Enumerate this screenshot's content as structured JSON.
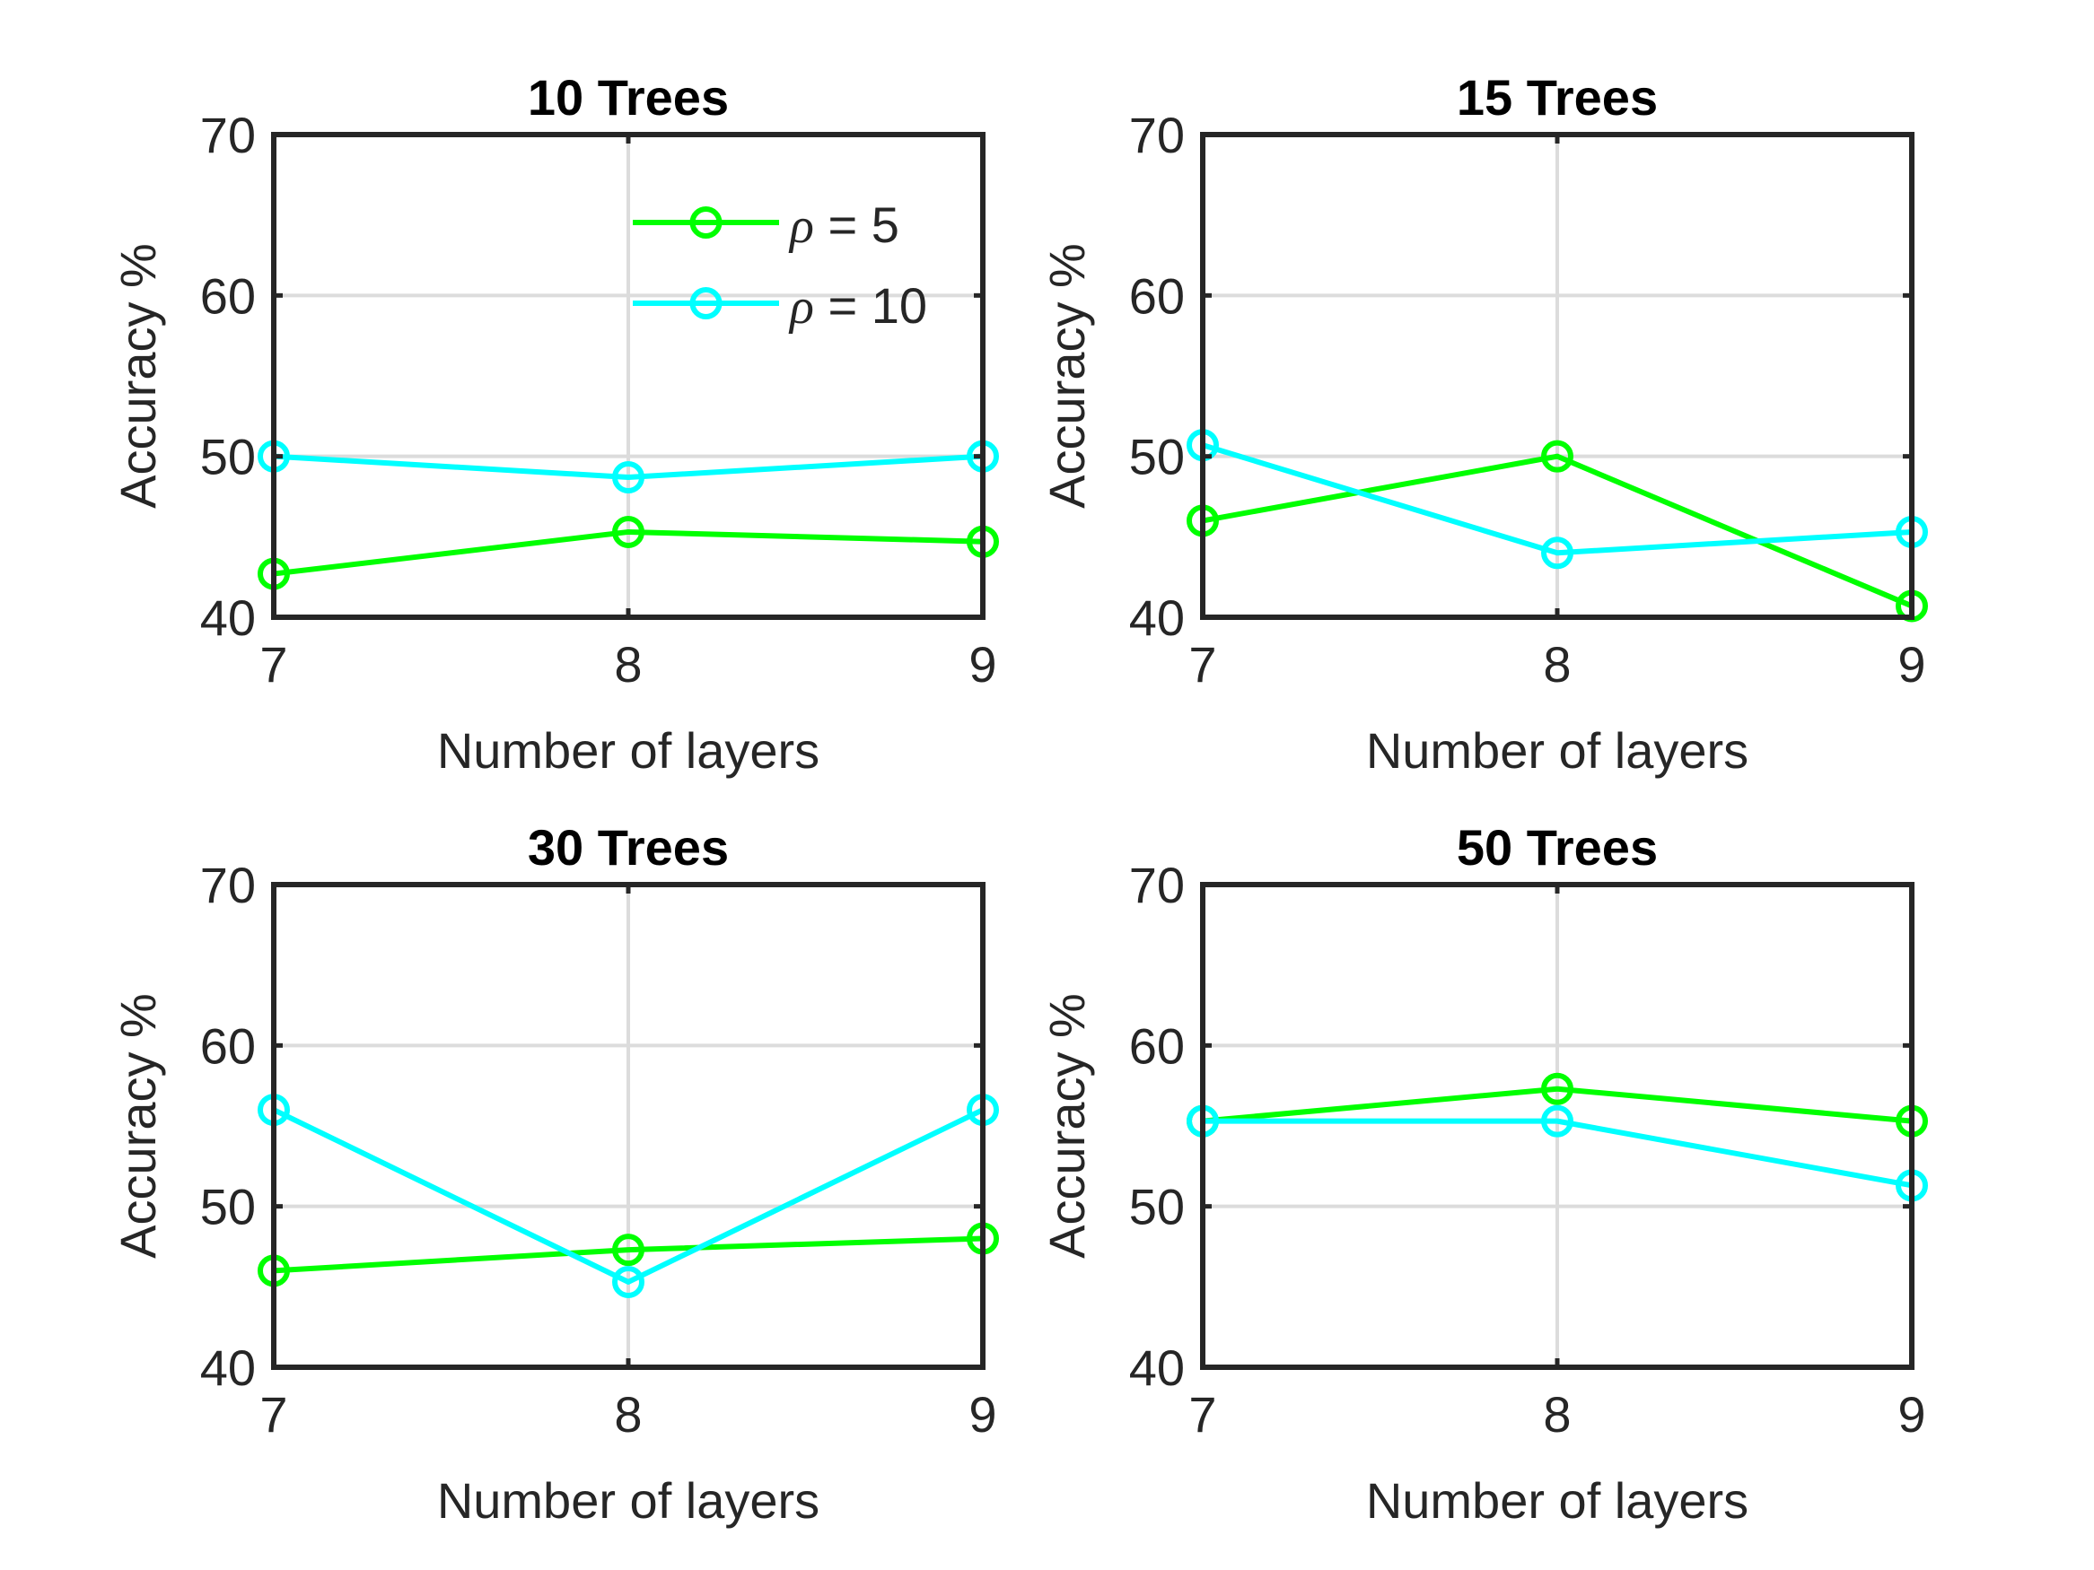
{
  "chart_data": [
    {
      "type": "line",
      "title": "10 Trees",
      "xlabel": "Number of layers",
      "ylabel": "Accuracy %",
      "x": [
        7,
        8,
        9
      ],
      "xlim": [
        7,
        9
      ],
      "ylim": [
        40,
        70
      ],
      "xticks": [
        "7",
        "8",
        "9"
      ],
      "yticks": [
        "40",
        "50",
        "60",
        "70"
      ],
      "grid": true,
      "legend": "top-right",
      "series": [
        {
          "name": "ρ = 5",
          "color": "#00ff00",
          "marker": "circle",
          "values": [
            42.7,
            45.3,
            44.7
          ]
        },
        {
          "name": "ρ = 10",
          "color": "#00ffff",
          "marker": "circle",
          "values": [
            50.0,
            48.7,
            50.0
          ]
        }
      ]
    },
    {
      "type": "line",
      "title": "15 Trees",
      "xlabel": "Number of layers",
      "ylabel": "Accuracy %",
      "x": [
        7,
        8,
        9
      ],
      "xlim": [
        7,
        9
      ],
      "ylim": [
        40,
        70
      ],
      "xticks": [
        "7",
        "8",
        "9"
      ],
      "yticks": [
        "40",
        "50",
        "60",
        "70"
      ],
      "grid": true,
      "series": [
        {
          "color": "#00ff00",
          "marker": "circle",
          "values": [
            46.0,
            50.0,
            40.7
          ]
        },
        {
          "color": "#00ffff",
          "marker": "circle",
          "values": [
            50.7,
            44.0,
            45.3
          ]
        }
      ]
    },
    {
      "type": "line",
      "title": "30 Trees",
      "xlabel": "Number of layers",
      "ylabel": "Accuracy %",
      "x": [
        7,
        8,
        9
      ],
      "xlim": [
        7,
        9
      ],
      "ylim": [
        40,
        70
      ],
      "xticks": [
        "7",
        "8",
        "9"
      ],
      "yticks": [
        "40",
        "50",
        "60",
        "70"
      ],
      "grid": true,
      "series": [
        {
          "color": "#00ff00",
          "marker": "circle",
          "values": [
            46.0,
            47.3,
            48.0
          ]
        },
        {
          "color": "#00ffff",
          "marker": "circle",
          "values": [
            56.0,
            45.3,
            56.0
          ]
        }
      ]
    },
    {
      "type": "line",
      "title": "50 Trees",
      "xlabel": "Number of layers",
      "ylabel": "Accuracy %",
      "x": [
        7,
        8,
        9
      ],
      "xlim": [
        7,
        9
      ],
      "ylim": [
        40,
        70
      ],
      "xticks": [
        "7",
        "8",
        "9"
      ],
      "yticks": [
        "40",
        "50",
        "60",
        "70"
      ],
      "grid": true,
      "series": [
        {
          "color": "#00ff00",
          "marker": "circle",
          "values": [
            55.3,
            57.3,
            55.3
          ]
        },
        {
          "color": "#00ffff",
          "marker": "circle",
          "values": [
            55.3,
            55.3,
            51.3
          ]
        }
      ]
    }
  ]
}
